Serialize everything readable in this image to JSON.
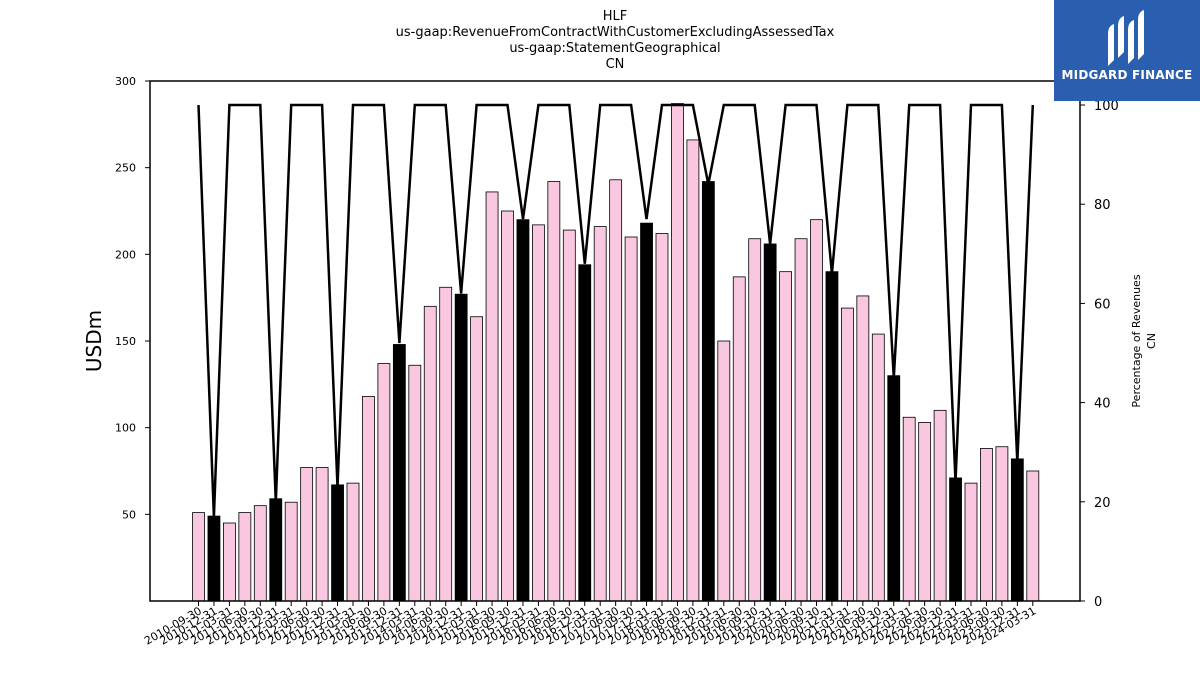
{
  "brand": {
    "name": "MIDGARD FINANCE",
    "color": "#2a5fb0",
    "icon": "midgard-logo-icon"
  },
  "chart_data": {
    "type": "bar",
    "title_lines": [
      "HLF",
      "us-gaap:RevenueFromContractWithCustomerExcludingAssessedTax",
      "us-gaap:StatementGeographical",
      "CN"
    ],
    "ylabel": "USDm",
    "y2label_lines": [
      "Percentage of Revenues",
      "CN"
    ],
    "ylim": [
      0,
      300
    ],
    "y2lim": [
      0,
      100
    ],
    "yticks": [
      50,
      100,
      150,
      200,
      250,
      300
    ],
    "y2ticks": [
      0,
      20,
      40,
      60,
      80,
      100
    ],
    "bar_fill_colors": {
      "quarter": "#f9c8e0",
      "fiscal_year": "#000000"
    },
    "x_tick_labels": [
      "2010-09-30",
      "2010-12-31",
      "2011-03-31",
      "2011-06-30",
      "2011-09-30",
      "2011-12-31",
      "2012-03-31",
      "2012-06-30",
      "2012-09-30",
      "2012-12-31",
      "2013-03-31",
      "2013-06-30",
      "2013-09-30",
      "2013-12-31",
      "2014-03-31",
      "2014-06-30",
      "2014-09-30",
      "2014-12-31",
      "2015-03-31",
      "2015-06-30",
      "2015-09-30",
      "2015-12-31",
      "2016-03-31",
      "2016-06-30",
      "2016-09-30",
      "2016-12-31",
      "2017-03-31",
      "2017-06-30",
      "2017-09-30",
      "2017-12-31",
      "2018-03-31",
      "2018-06-30",
      "2018-09-30",
      "2018-12-31",
      "2019-03-31",
      "2019-06-30",
      "2019-09-30",
      "2019-12-31",
      "2020-03-31",
      "2020-06-30",
      "2020-09-30",
      "2020-12-31",
      "2021-03-31",
      "2021-06-30",
      "2021-09-30",
      "2021-12-31",
      "2022-03-31",
      "2022-06-30",
      "2022-09-30",
      "2022-12-31",
      "2023-03-31",
      "2023-06-30",
      "2023-09-30",
      "2023-12-31",
      "2024-03-31"
    ],
    "series": [
      {
        "kind": "bar",
        "values": [
          51,
          49,
          45,
          51,
          55,
          59,
          57,
          77,
          77,
          67,
          68,
          118,
          137,
          148,
          136,
          170,
          181,
          177,
          164,
          236,
          225,
          220,
          217,
          242,
          214,
          194,
          216,
          243,
          210,
          218,
          212,
          287,
          266,
          242,
          150,
          187,
          209,
          206,
          190,
          209,
          220,
          190,
          169,
          176,
          154,
          130,
          106,
          103,
          110,
          71,
          68,
          88,
          89,
          82,
          75
        ],
        "fiscal_year_flags": [
          0,
          1,
          0,
          0,
          0,
          1,
          0,
          0,
          0,
          1,
          0,
          0,
          0,
          1,
          0,
          0,
          0,
          1,
          0,
          0,
          0,
          1,
          0,
          0,
          0,
          1,
          0,
          0,
          0,
          1,
          0,
          0,
          0,
          1,
          0,
          0,
          0,
          1,
          0,
          0,
          0,
          1,
          0,
          0,
          0,
          1,
          0,
          0,
          0,
          1,
          0,
          0,
          0,
          1,
          0
        ]
      },
      {
        "kind": "line",
        "axis": "right",
        "color": "#000000",
        "values": [
          100,
          17,
          100,
          100,
          100,
          20,
          100,
          100,
          100,
          23,
          100,
          100,
          100,
          52,
          100,
          100,
          100,
          62,
          100,
          100,
          100,
          77,
          100,
          100,
          100,
          68,
          100,
          100,
          100,
          77,
          100,
          100,
          100,
          84,
          100,
          100,
          100,
          72,
          100,
          100,
          100,
          66,
          100,
          100,
          100,
          45,
          100,
          100,
          100,
          24,
          100,
          100,
          100,
          28,
          100
        ]
      }
    ]
  }
}
